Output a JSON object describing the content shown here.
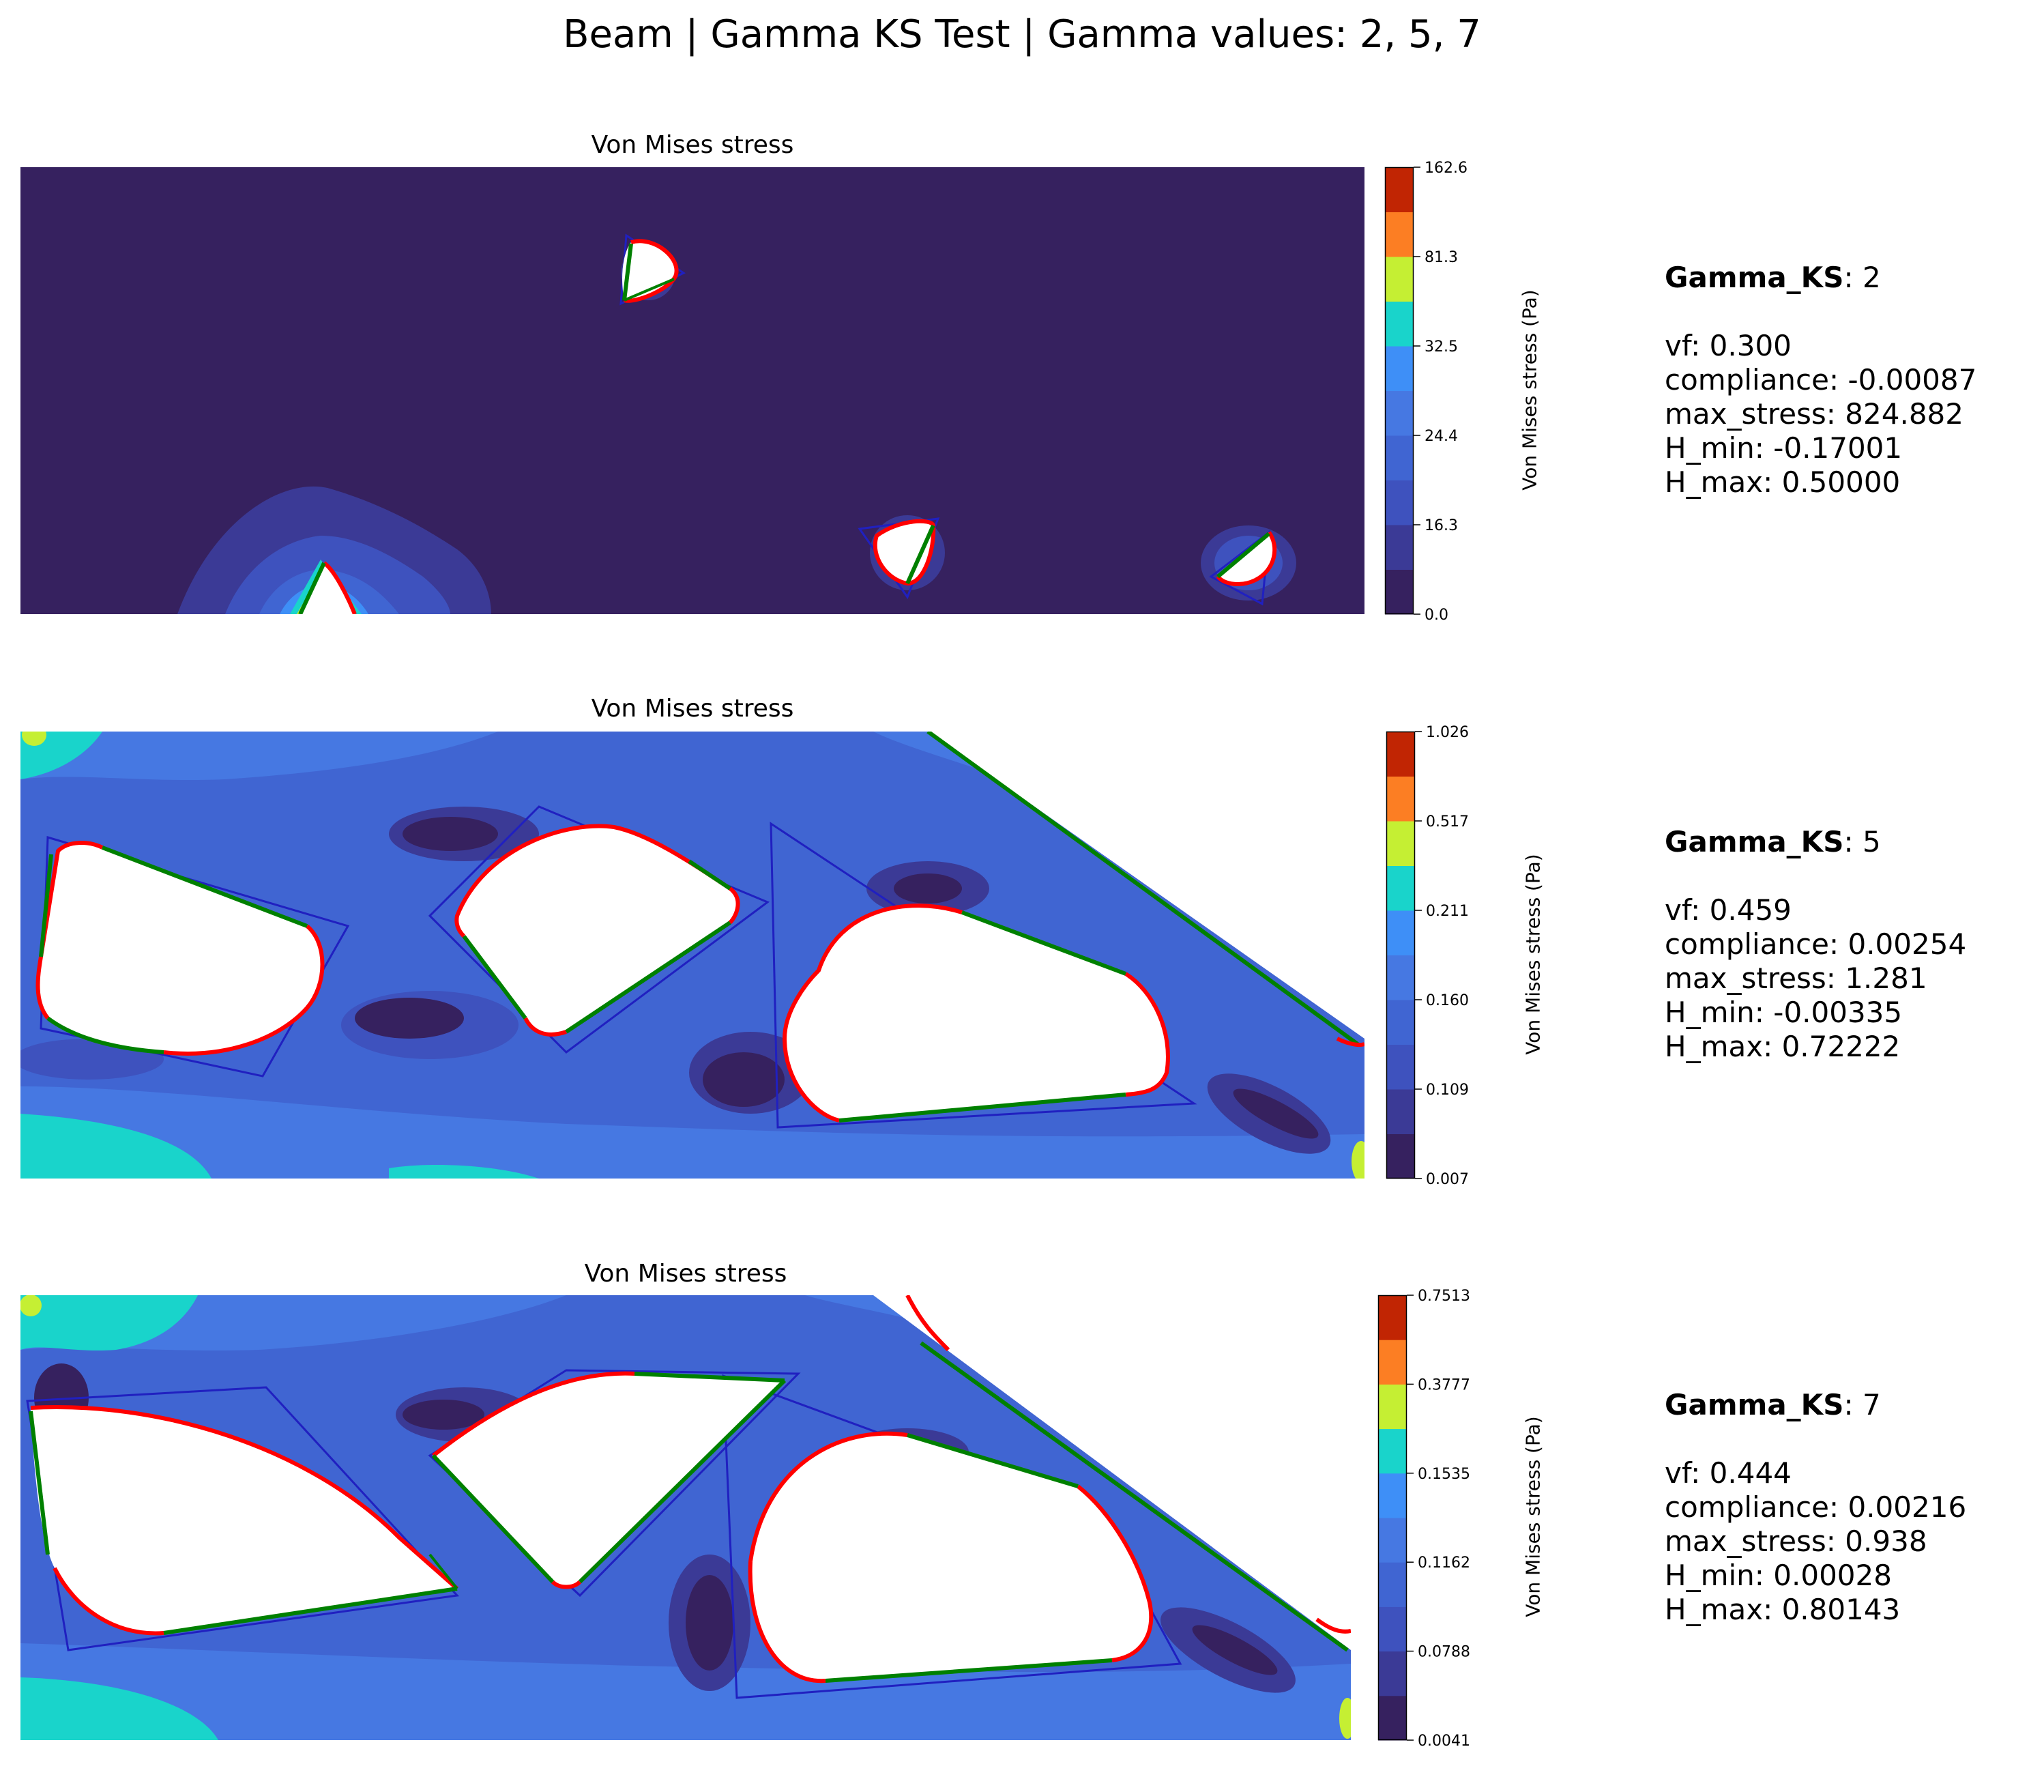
{
  "suptitle": "Beam | Gamma KS Test | Gamma values: 2, 5, 7",
  "colors": {
    "levels": [
      "#36215f",
      "#3b3a96",
      "#3e52be",
      "#4065d2",
      "#4678e2",
      "#3e8ff7",
      "#19d4cb",
      "#c5ef33",
      "#fc7e23",
      "#c12503"
    ],
    "hole_outline": "#ff0000",
    "straight_edge": "#008000",
    "component_outline": "#2020c0",
    "void": "#ffffff"
  },
  "panels": [
    {
      "title": "Von Mises stress",
      "colorbar_label": "Von Mises stress (Pa)",
      "ticks": [
        "0.0",
        "16.3",
        "24.4",
        "32.5",
        "81.3",
        "162.6"
      ],
      "info": {
        "gamma_label": "Gamma_KS",
        "gamma_value": ": 2",
        "vf": "vf: 0.300",
        "compliance": "compliance: -0.00087",
        "max_stress": "max_stress: 824.882",
        "h_min": "H_min: -0.17001",
        "h_max": "H_max: 0.50000"
      }
    },
    {
      "title": "Von Mises stress",
      "colorbar_label": "Von Mises stress (Pa)",
      "ticks": [
        "0.007",
        "0.109",
        "0.160",
        "0.211",
        "0.517",
        "1.026"
      ],
      "info": {
        "gamma_label": "Gamma_KS",
        "gamma_value": ": 5",
        "vf": "vf: 0.459",
        "compliance": "compliance: 0.00254",
        "max_stress": "max_stress: 1.281",
        "h_min": "H_min: -0.00335",
        "h_max": "H_max: 0.72222"
      }
    },
    {
      "title": "Von Mises stress",
      "colorbar_label": "Von Mises stress (Pa)",
      "ticks": [
        "0.0041",
        "0.0788",
        "0.1162",
        "0.1535",
        "0.3777",
        "0.7513"
      ],
      "info": {
        "gamma_label": "Gamma_KS",
        "gamma_value": ": 7",
        "vf": "vf: 0.444",
        "compliance": "compliance: 0.00216",
        "max_stress": "max_stress: 0.938",
        "h_min": "H_min: 0.00028",
        "h_max": "H_max: 0.80143"
      }
    }
  ],
  "chart_data": [
    {
      "type": "heatmap",
      "title": "Von Mises stress",
      "colorbar_label": "Von Mises stress (Pa)",
      "colorbar_ticks": [
        0.0,
        16.3,
        24.4,
        32.5,
        81.3,
        162.6
      ],
      "colorbar_levels": 10,
      "gamma_ks": 2,
      "vf": 0.3,
      "compliance": -0.00087,
      "max_stress": 824.882,
      "h_min": -0.17001,
      "h_max": 0.5
    },
    {
      "type": "heatmap",
      "title": "Von Mises stress",
      "colorbar_label": "Von Mises stress (Pa)",
      "colorbar_ticks": [
        0.007,
        0.109,
        0.16,
        0.211,
        0.517,
        1.026
      ],
      "colorbar_levels": 10,
      "gamma_ks": 5,
      "vf": 0.459,
      "compliance": 0.00254,
      "max_stress": 1.281,
      "h_min": -0.00335,
      "h_max": 0.72222
    },
    {
      "type": "heatmap",
      "title": "Von Mises stress",
      "colorbar_label": "Von Mises stress (Pa)",
      "colorbar_ticks": [
        0.0041,
        0.0788,
        0.1162,
        0.1535,
        0.3777,
        0.7513
      ],
      "colorbar_levels": 10,
      "gamma_ks": 7,
      "vf": 0.444,
      "compliance": 0.00216,
      "max_stress": 0.938,
      "h_min": 0.00028,
      "h_max": 0.80143
    }
  ]
}
